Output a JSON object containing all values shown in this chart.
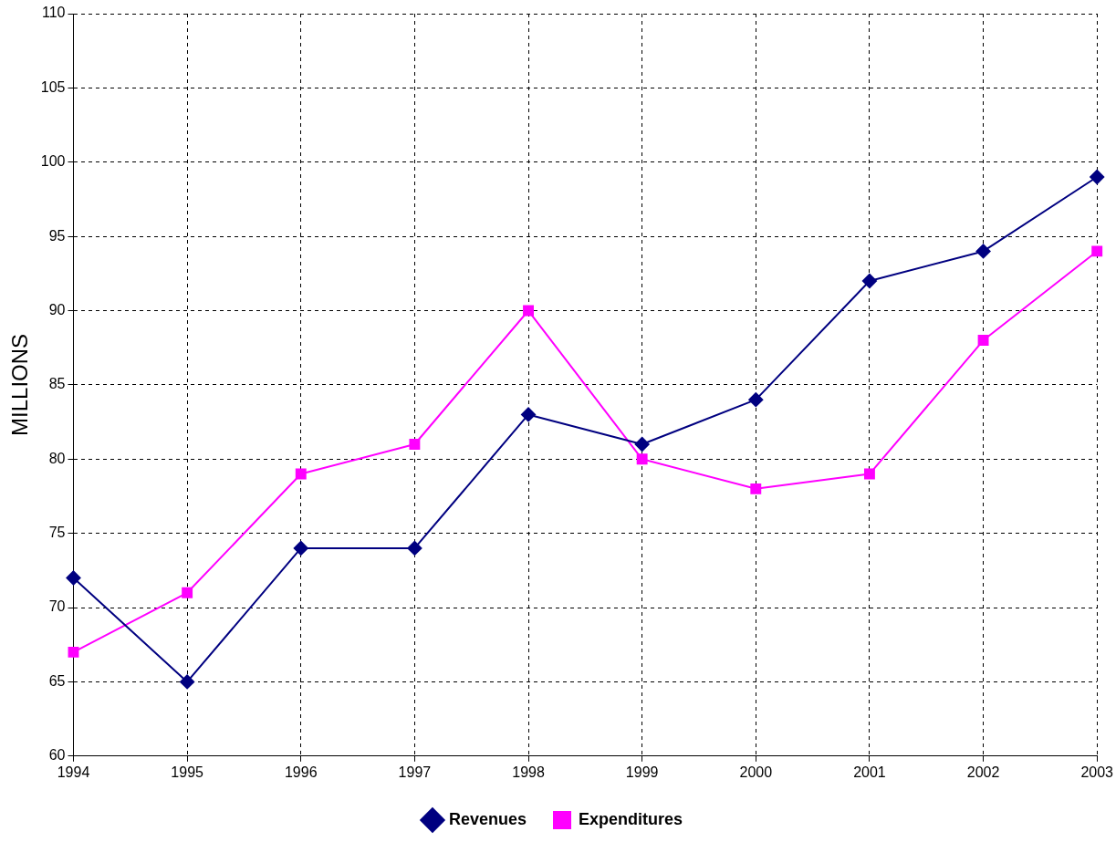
{
  "chart_data": {
    "type": "line",
    "ylabel": "MILLIONS",
    "categories": [
      "1994",
      "1995",
      "1996",
      "1997",
      "1998",
      "1999",
      "2000",
      "2001",
      "2002",
      "2003"
    ],
    "series": [
      {
        "name": "Revenues",
        "color": "#000080",
        "marker": "diamond",
        "values": [
          72,
          65,
          74,
          74,
          83,
          81,
          84,
          92,
          94,
          99
        ]
      },
      {
        "name": "Expenditures",
        "color": "#ff00ff",
        "marker": "square",
        "values": [
          67,
          71,
          79,
          81,
          90,
          80,
          78,
          79,
          88,
          94
        ]
      }
    ],
    "ylim": [
      60,
      110
    ],
    "yticks": [
      60,
      65,
      70,
      75,
      80,
      85,
      90,
      95,
      100,
      105,
      110
    ],
    "grid": true,
    "line_style": "solid",
    "legend": "bottom"
  }
}
